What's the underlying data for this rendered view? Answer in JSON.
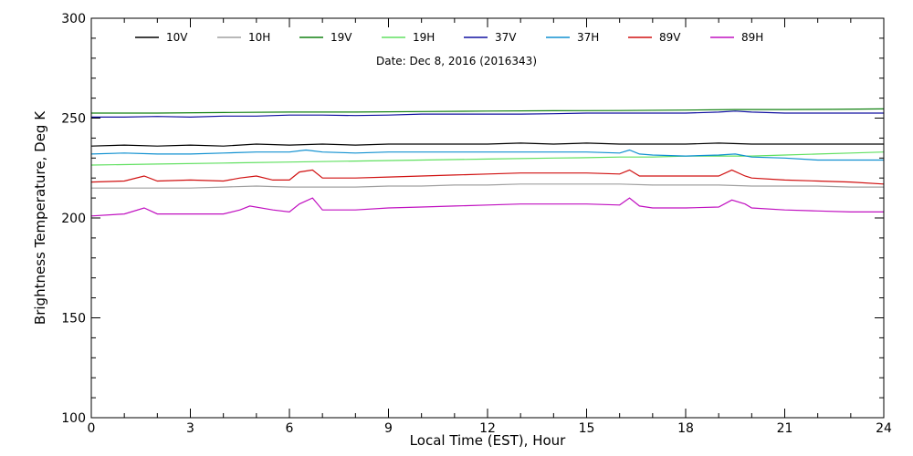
{
  "chart_data": {
    "type": "line",
    "title": "",
    "annotation": "Date: Dec  8, 2016 (2016343)",
    "xlabel": "Local Time (EST), Hour",
    "ylabel": "Brightness Temperature, Deg K",
    "xlim": [
      0,
      24
    ],
    "ylim": [
      100,
      300
    ],
    "xticks": [
      0,
      3,
      6,
      9,
      12,
      15,
      18,
      21,
      24
    ],
    "yticks": [
      100,
      150,
      200,
      250,
      300
    ],
    "grid": false,
    "legend_position": "top",
    "series": [
      {
        "name": "10V",
        "color": "#000000",
        "points": [
          [
            0,
            236
          ],
          [
            1,
            236.5
          ],
          [
            2,
            236
          ],
          [
            3,
            236.5
          ],
          [
            4,
            236
          ],
          [
            5,
            237
          ],
          [
            6,
            236.5
          ],
          [
            7,
            237
          ],
          [
            8,
            236.5
          ],
          [
            9,
            237
          ],
          [
            10,
            237
          ],
          [
            11,
            237
          ],
          [
            12,
            237
          ],
          [
            13,
            237.5
          ],
          [
            14,
            237
          ],
          [
            15,
            237.5
          ],
          [
            16,
            237
          ],
          [
            17,
            237
          ],
          [
            18,
            237
          ],
          [
            19,
            237.5
          ],
          [
            20,
            237
          ],
          [
            21,
            237
          ],
          [
            22,
            237
          ],
          [
            23,
            237
          ],
          [
            24,
            237
          ]
        ]
      },
      {
        "name": "10H",
        "color": "#a0a0a0",
        "points": [
          [
            0,
            215
          ],
          [
            1,
            215
          ],
          [
            2,
            215
          ],
          [
            3,
            215
          ],
          [
            4,
            215.5
          ],
          [
            5,
            216
          ],
          [
            6,
            215.5
          ],
          [
            7,
            215.5
          ],
          [
            8,
            215.5
          ],
          [
            9,
            216
          ],
          [
            10,
            216
          ],
          [
            11,
            216.5
          ],
          [
            12,
            216.5
          ],
          [
            13,
            217
          ],
          [
            14,
            217
          ],
          [
            15,
            217
          ],
          [
            16,
            217
          ],
          [
            17,
            216.5
          ],
          [
            18,
            216.5
          ],
          [
            19,
            216.5
          ],
          [
            20,
            216
          ],
          [
            21,
            216
          ],
          [
            22,
            216
          ],
          [
            23,
            215.5
          ],
          [
            24,
            215.5
          ]
        ]
      },
      {
        "name": "19V",
        "color": "#108010",
        "points": [
          [
            0,
            252.5
          ],
          [
            2,
            252.5
          ],
          [
            4,
            252.8
          ],
          [
            6,
            253
          ],
          [
            8,
            253
          ],
          [
            10,
            253.3
          ],
          [
            12,
            253.5
          ],
          [
            14,
            253.7
          ],
          [
            16,
            253.8
          ],
          [
            18,
            254
          ],
          [
            19.5,
            254.3
          ],
          [
            21,
            254.3
          ],
          [
            22.5,
            254.4
          ],
          [
            24,
            254.6
          ]
        ]
      },
      {
        "name": "19H",
        "color": "#60e060",
        "points": [
          [
            0,
            226.5
          ],
          [
            2,
            227
          ],
          [
            4,
            227.5
          ],
          [
            6,
            228
          ],
          [
            8,
            228.5
          ],
          [
            10,
            229
          ],
          [
            12,
            229.5
          ],
          [
            14,
            230
          ],
          [
            15,
            230.2
          ],
          [
            16,
            230.5
          ],
          [
            17,
            230.5
          ],
          [
            18,
            231
          ],
          [
            19,
            231
          ],
          [
            20,
            231
          ],
          [
            21,
            231.5
          ],
          [
            22,
            232
          ],
          [
            23,
            232.5
          ],
          [
            24,
            233
          ]
        ]
      },
      {
        "name": "37V",
        "color": "#1010a0",
        "points": [
          [
            0,
            250.5
          ],
          [
            1,
            250.5
          ],
          [
            2,
            250.8
          ],
          [
            3,
            250.5
          ],
          [
            4,
            251
          ],
          [
            5,
            251
          ],
          [
            6,
            251.5
          ],
          [
            7,
            251.5
          ],
          [
            8,
            251.3
          ],
          [
            9,
            251.5
          ],
          [
            10,
            252
          ],
          [
            11,
            252
          ],
          [
            12,
            252
          ],
          [
            13,
            252
          ],
          [
            14,
            252.2
          ],
          [
            15,
            252.5
          ],
          [
            16,
            252.5
          ],
          [
            17,
            252.5
          ],
          [
            18,
            252.5
          ],
          [
            19,
            253
          ],
          [
            19.5,
            253.5
          ],
          [
            20,
            253
          ],
          [
            21,
            252.5
          ],
          [
            22,
            252.5
          ],
          [
            23,
            252.5
          ],
          [
            24,
            252.5
          ]
        ]
      },
      {
        "name": "37H",
        "color": "#1090d0",
        "points": [
          [
            0,
            232
          ],
          [
            1,
            232.5
          ],
          [
            2,
            232
          ],
          [
            3,
            232
          ],
          [
            4,
            232.5
          ],
          [
            5,
            233
          ],
          [
            6,
            233
          ],
          [
            6.5,
            234
          ],
          [
            7,
            233
          ],
          [
            8,
            232.5
          ],
          [
            9,
            233
          ],
          [
            10,
            233
          ],
          [
            11,
            233
          ],
          [
            12,
            233
          ],
          [
            13,
            233
          ],
          [
            14,
            233
          ],
          [
            15,
            233
          ],
          [
            16,
            232.5
          ],
          [
            16.3,
            234
          ],
          [
            16.6,
            232
          ],
          [
            17,
            231.5
          ],
          [
            18,
            231
          ],
          [
            19,
            231.5
          ],
          [
            19.5,
            232
          ],
          [
            20,
            230.5
          ],
          [
            21,
            230
          ],
          [
            22,
            229
          ],
          [
            23,
            229
          ],
          [
            24,
            229
          ]
        ]
      },
      {
        "name": "89V",
        "color": "#d01010",
        "points": [
          [
            0,
            218
          ],
          [
            1,
            218.5
          ],
          [
            1.6,
            221
          ],
          [
            2,
            218.5
          ],
          [
            3,
            219
          ],
          [
            4,
            218.5
          ],
          [
            4.5,
            220
          ],
          [
            5,
            221
          ],
          [
            5.5,
            219
          ],
          [
            6,
            219
          ],
          [
            6.3,
            223
          ],
          [
            6.7,
            224
          ],
          [
            7,
            220
          ],
          [
            8,
            220
          ],
          [
            9,
            220.5
          ],
          [
            10,
            221
          ],
          [
            11,
            221.5
          ],
          [
            12,
            222
          ],
          [
            13,
            222.5
          ],
          [
            14,
            222.5
          ],
          [
            15,
            222.5
          ],
          [
            16,
            222
          ],
          [
            16.3,
            224
          ],
          [
            16.6,
            221
          ],
          [
            17,
            221
          ],
          [
            18,
            221
          ],
          [
            19,
            221
          ],
          [
            19.4,
            224
          ],
          [
            19.8,
            221
          ],
          [
            20,
            220
          ],
          [
            21,
            219
          ],
          [
            22,
            218.5
          ],
          [
            23,
            218
          ],
          [
            24,
            217
          ]
        ]
      },
      {
        "name": "89H",
        "color": "#c010c0",
        "points": [
          [
            0,
            201
          ],
          [
            1,
            202
          ],
          [
            1.6,
            205
          ],
          [
            2,
            202
          ],
          [
            3,
            202
          ],
          [
            4,
            202
          ],
          [
            4.5,
            204
          ],
          [
            4.8,
            206
          ],
          [
            5.5,
            204
          ],
          [
            6,
            203
          ],
          [
            6.3,
            207
          ],
          [
            6.7,
            210
          ],
          [
            7,
            204
          ],
          [
            8,
            204
          ],
          [
            9,
            205
          ],
          [
            10,
            205.5
          ],
          [
            11,
            206
          ],
          [
            12,
            206.5
          ],
          [
            13,
            207
          ],
          [
            14,
            207
          ],
          [
            15,
            207
          ],
          [
            16,
            206.5
          ],
          [
            16.3,
            210
          ],
          [
            16.6,
            206
          ],
          [
            17,
            205
          ],
          [
            18,
            205
          ],
          [
            19,
            205.5
          ],
          [
            19.4,
            209
          ],
          [
            19.8,
            207
          ],
          [
            20,
            205
          ],
          [
            21,
            204
          ],
          [
            22,
            203.5
          ],
          [
            23,
            203
          ],
          [
            24,
            203
          ]
        ]
      }
    ]
  }
}
